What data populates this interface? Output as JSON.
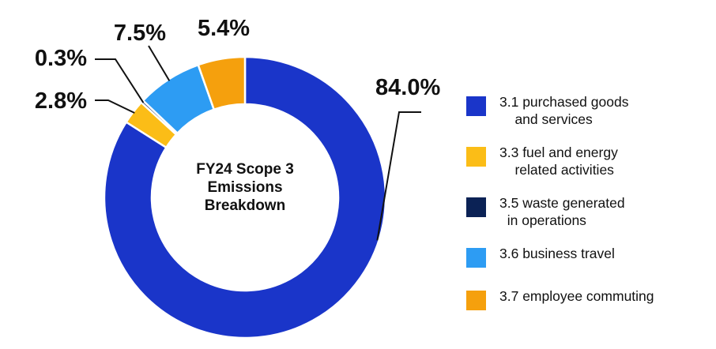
{
  "chart_data": {
    "type": "pie",
    "title": "FY24 Scope 3\nEmissions\nBreakdown",
    "series": [
      {
        "name": "3.1 purchased goods\n    and services",
        "value": 84.0,
        "label": "84.0%",
        "color": "#1a35c9"
      },
      {
        "name": "3.3 fuel and energy\n    related activities",
        "value": 2.8,
        "label": "2.8%",
        "color": "#fbbd17"
      },
      {
        "name": "3.5 waste generated\n  in operations",
        "value": 0.3,
        "label": "0.3%",
        "color": "#0b2255"
      },
      {
        "name": "3.6 business travel",
        "value": 7.5,
        "label": "7.5%",
        "color": "#2d9cf3"
      },
      {
        "name": "3.7 employee commuting",
        "value": 5.4,
        "label": "5.4%",
        "color": "#f5a00d"
      }
    ],
    "legend": "right"
  }
}
